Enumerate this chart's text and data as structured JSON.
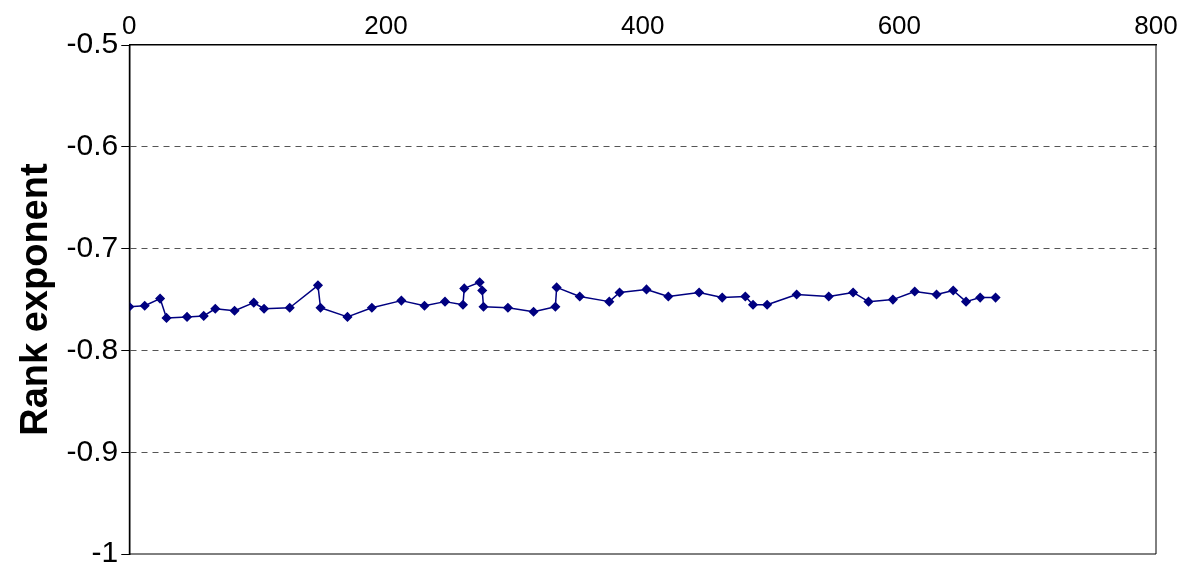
{
  "chart_data": {
    "type": "line",
    "ylabel": "Rank exponent",
    "x": [
      0,
      12,
      24,
      29,
      45,
      58,
      67,
      82,
      97,
      105,
      125,
      147,
      149,
      170,
      189,
      212,
      230,
      246,
      260,
      261,
      273,
      275,
      276,
      295,
      315,
      332,
      333,
      351,
      374,
      382,
      403,
      420,
      444,
      462,
      480,
      486,
      497,
      520,
      545,
      564,
      576,
      595,
      612,
      629,
      642,
      652,
      663,
      675
    ],
    "series": [
      {
        "color": "#000080",
        "values": [
          -0.757,
          -0.756,
          -0.749,
          -0.768,
          -0.767,
          -0.766,
          -0.759,
          -0.761,
          -0.753,
          -0.759,
          -0.758,
          -0.736,
          -0.758,
          -0.767,
          -0.758,
          -0.751,
          -0.756,
          -0.752,
          -0.755,
          -0.739,
          -0.733,
          -0.741,
          -0.757,
          -0.758,
          -0.762,
          -0.757,
          -0.738,
          -0.747,
          -0.752,
          -0.743,
          -0.74,
          -0.747,
          -0.743,
          -0.748,
          -0.747,
          -0.755,
          -0.755,
          -0.745,
          -0.747,
          -0.743,
          -0.752,
          -0.75,
          -0.742,
          -0.745,
          -0.741,
          -0.752,
          -0.748,
          -0.748
        ]
      }
    ],
    "xlim": [
      0,
      800
    ],
    "xticks": [
      0,
      200,
      400,
      600,
      800
    ],
    "ylim": [
      -1,
      -0.5
    ],
    "yticks": [
      -1,
      -0.9,
      -0.8,
      -0.7,
      -0.6,
      -0.5
    ],
    "grid": "y",
    "marker": "diamond",
    "line_style": "solid"
  }
}
